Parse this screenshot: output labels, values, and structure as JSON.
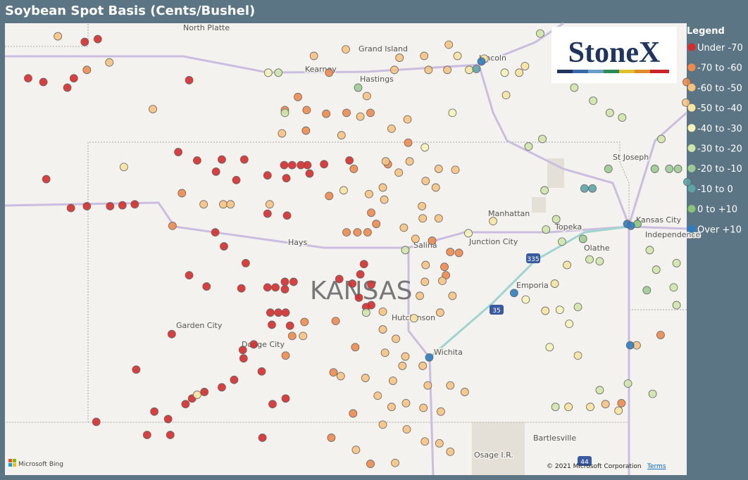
{
  "title": "Soybean Spot Basis (Cents/Bushel)",
  "logo": "StoneX",
  "legend": {
    "title": "Legend",
    "items": [
      {
        "label": "Under -70",
        "color": "#d62b2b"
      },
      {
        "label": "-70 to -60",
        "color": "#f0894c"
      },
      {
        "label": "-60 to -50",
        "color": "#f8c27f"
      },
      {
        "label": "-50 to -40",
        "color": "#fbe3a0"
      },
      {
        "label": "-40 to -30",
        "color": "#f6f3b8"
      },
      {
        "label": "-30 to -20",
        "color": "#cfe6aa"
      },
      {
        "label": "-20 to -10",
        "color": "#9ccc94"
      },
      {
        "label": "-10 to 0",
        "color": "#5ba4a8"
      },
      {
        "label": "0 to +10",
        "color": "#87c47a"
      },
      {
        "label": "Over +10",
        "color": "#2d7cc0"
      }
    ]
  },
  "map": {
    "lon": [
      -103.2,
      -93.8
    ],
    "lat": [
      36.43,
      41.27
    ],
    "labels": [
      "North Platte",
      "Grand Island",
      "Kearney",
      "Hastings",
      "Lincoln",
      "St Joseph",
      "Manhattan",
      "Topeka",
      "Kansas City",
      "Independence",
      "Olathe",
      "Junction City",
      "Salina",
      "Hays",
      "KANSAS",
      "Garden City",
      "Dodge City",
      "Hutchinson",
      "Wichita",
      "Emporia",
      "Bartlesville",
      "Osage I.R."
    ],
    "shields": [
      "335",
      "35",
      "44"
    ],
    "provider": "Microsoft Bing",
    "attribution": "© 2021 Microsoft Corporation",
    "terms": "Terms",
    "points": [
      [
        -102.88,
        40.68,
        0
      ],
      [
        -102.67,
        40.64,
        0
      ],
      [
        -102.34,
        40.58,
        0
      ],
      [
        -102.25,
        40.68,
        0
      ],
      [
        -102.1,
        41.07,
        0
      ],
      [
        -101.92,
        41.1,
        0
      ],
      [
        -100.66,
        40.66,
        0
      ],
      [
        -102.63,
        39.6,
        0
      ],
      [
        -102.29,
        39.29,
        0
      ],
      [
        -102.07,
        39.31,
        0
      ],
      [
        -101.75,
        39.31,
        0
      ],
      [
        -101.58,
        39.32,
        0
      ],
      [
        -101.41,
        39.33,
        0
      ],
      [
        -100.81,
        39.89,
        0
      ],
      [
        -100.55,
        39.8,
        0
      ],
      [
        -100.21,
        39.81,
        0
      ],
      [
        -99.9,
        39.81,
        0
      ],
      [
        -100.29,
        39.68,
        0
      ],
      [
        -100.01,
        39.59,
        0
      ],
      [
        -99.58,
        39.64,
        0
      ],
      [
        -99.35,
        39.75,
        0
      ],
      [
        -99.24,
        39.75,
        0
      ],
      [
        -99.12,
        39.75,
        0
      ],
      [
        -99.03,
        39.75,
        0
      ],
      [
        -98.8,
        39.76,
        0
      ],
      [
        -98.45,
        39.8,
        0
      ],
      [
        -99.32,
        39.61,
        0
      ],
      [
        -99.0,
        39.66,
        0
      ],
      [
        -99.58,
        39.23,
        0
      ],
      [
        -99.31,
        39.21,
        0
      ],
      [
        -100.3,
        39.03,
        0
      ],
      [
        -100.18,
        38.88,
        0
      ],
      [
        -99.88,
        38.7,
        0
      ],
      [
        -100.66,
        38.57,
        0
      ],
      [
        -100.42,
        38.45,
        0
      ],
      [
        -99.94,
        38.43,
        0
      ],
      [
        -99.58,
        38.44,
        0
      ],
      [
        -99.47,
        38.44,
        0
      ],
      [
        -99.34,
        38.5,
        0
      ],
      [
        -99.22,
        38.5,
        0
      ],
      [
        -99.34,
        38.42,
        0
      ],
      [
        -98.59,
        38.53,
        0
      ],
      [
        -98.41,
        38.48,
        0
      ],
      [
        -98.25,
        38.69,
        0
      ],
      [
        -98.3,
        38.58,
        0
      ],
      [
        -98.15,
        38.47,
        0
      ],
      [
        -98.32,
        38.33,
        0
      ],
      [
        -98.22,
        38.23,
        0
      ],
      [
        -98.15,
        38.25,
        0
      ],
      [
        -99.54,
        38.17,
        0
      ],
      [
        -99.43,
        38.17,
        0
      ],
      [
        -99.33,
        38.17,
        0
      ],
      [
        -99.52,
        38.04,
        0
      ],
      [
        -99.27,
        38.03,
        0
      ],
      [
        -100.9,
        37.94,
        0
      ],
      [
        -99.92,
        37.77,
        0
      ],
      [
        -99.77,
        37.83,
        0
      ],
      [
        -99.91,
        37.68,
        0
      ],
      [
        -99.66,
        37.54,
        0
      ],
      [
        -101.39,
        37.56,
        0
      ],
      [
        -100.04,
        37.45,
        0
      ],
      [
        -100.21,
        37.37,
        0
      ],
      [
        -100.45,
        37.32,
        0
      ],
      [
        -100.62,
        37.25,
        0
      ],
      [
        -100.71,
        37.19,
        0
      ],
      [
        -99.51,
        37.19,
        0
      ],
      [
        -99.33,
        37.25,
        0
      ],
      [
        -101.14,
        37.11,
        0
      ],
      [
        -100.95,
        37.03,
        0
      ],
      [
        -101.94,
        37.0,
        0
      ],
      [
        -101.24,
        36.86,
        0
      ],
      [
        -100.92,
        36.86,
        0
      ],
      [
        -99.65,
        36.83,
        0
      ],
      [
        -102.07,
        40.77,
        1
      ],
      [
        -100.76,
        39.45,
        1
      ],
      [
        -100.89,
        39.1,
        1
      ],
      [
        -98.73,
        39.42,
        1
      ],
      [
        -98.77,
        40.3,
        1
      ],
      [
        -98.49,
        40.31,
        1
      ],
      [
        -98.16,
        40.31,
        1
      ],
      [
        -99.04,
        40.34,
        1
      ],
      [
        -99.34,
        40.34,
        1
      ],
      [
        -99.05,
        40.12,
        1
      ],
      [
        -99.16,
        40.48,
        1
      ],
      [
        -98.39,
        39.71,
        1
      ],
      [
        -97.92,
        39.76,
        1
      ],
      [
        -97.64,
        39.99,
        1
      ],
      [
        -98.15,
        39.24,
        1
      ],
      [
        -98.34,
        39.03,
        1
      ],
      [
        -98.49,
        39.03,
        1
      ],
      [
        -98.2,
        39.03,
        1
      ],
      [
        -98.08,
        39.12,
        1
      ],
      [
        -99.07,
        38.07,
        1
      ],
      [
        -99.24,
        37.92,
        1
      ],
      [
        -99.33,
        37.71,
        1
      ],
      [
        -98.64,
        38.08,
        1
      ],
      [
        -98.37,
        37.8,
        1
      ],
      [
        -98.67,
        37.53,
        1
      ],
      [
        -98.7,
        36.83,
        1
      ],
      [
        -98.4,
        37.09,
        1
      ],
      [
        -98.16,
        36.55,
        1
      ],
      [
        -97.31,
        38.94,
        1
      ],
      [
        -97.06,
        38.82,
        1
      ],
      [
        -97.14,
        38.66,
        1
      ],
      [
        -96.94,
        38.81,
        1
      ],
      [
        -97.12,
        38.57,
        1
      ],
      [
        -94.16,
        37.93,
        1
      ],
      [
        -94.7,
        37.2,
        1
      ],
      [
        -93.8,
        40.64,
        1
      ],
      [
        -98.73,
        40.74,
        1
      ],
      [
        -102.47,
        41.13,
        2
      ],
      [
        -101.76,
        40.85,
        2
      ],
      [
        -101.16,
        40.35,
        2
      ],
      [
        -100.46,
        39.33,
        2
      ],
      [
        -100.19,
        39.33,
        2
      ],
      [
        -100.09,
        39.33,
        2
      ],
      [
        -99.55,
        39.33,
        2
      ],
      [
        -98.94,
        40.92,
        2
      ],
      [
        -98.5,
        40.99,
        2
      ],
      [
        -97.83,
        40.77,
        2
      ],
      [
        -97.76,
        40.9,
        2
      ],
      [
        -97.42,
        40.92,
        2
      ],
      [
        -97.08,
        41.04,
        2
      ],
      [
        -97.36,
        40.77,
        2
      ],
      [
        -97.1,
        40.77,
        2
      ],
      [
        -97.65,
        40.24,
        2
      ],
      [
        -97.87,
        40.14,
        2
      ],
      [
        -98.21,
        40.49,
        2
      ],
      [
        -98.56,
        40.07,
        2
      ],
      [
        -99.38,
        40.09,
        2
      ],
      [
        -98.3,
        40.27,
        2
      ],
      [
        -97.95,
        39.79,
        2
      ],
      [
        -97.77,
        39.67,
        2
      ],
      [
        -97.62,
        39.79,
        2
      ],
      [
        -97.4,
        39.58,
        2
      ],
      [
        -97.22,
        39.71,
        2
      ],
      [
        -96.99,
        39.7,
        2
      ],
      [
        -97.26,
        39.51,
        2
      ],
      [
        -97.99,
        39.51,
        2
      ],
      [
        -97.97,
        39.38,
        2
      ],
      [
        -98.18,
        39.44,
        2
      ],
      [
        -97.45,
        39.31,
        2
      ],
      [
        -97.44,
        39.18,
        2
      ],
      [
        -97.22,
        39.18,
        2
      ],
      [
        -97.7,
        39.08,
        2
      ],
      [
        -97.54,
        38.96,
        2
      ],
      [
        -97.4,
        38.68,
        2
      ],
      [
        -97.41,
        38.5,
        2
      ],
      [
        -97.17,
        38.51,
        2
      ],
      [
        -97.03,
        38.35,
        2
      ],
      [
        -97.2,
        38.17,
        2
      ],
      [
        -97.48,
        38.35,
        2
      ],
      [
        -97.99,
        38.18,
        2
      ],
      [
        -97.99,
        37.99,
        2
      ],
      [
        -97.81,
        37.89,
        2
      ],
      [
        -97.96,
        37.74,
        2
      ],
      [
        -97.68,
        37.7,
        2
      ],
      [
        -97.72,
        37.6,
        2
      ],
      [
        -97.44,
        37.6,
        2
      ],
      [
        -97.85,
        37.44,
        2
      ],
      [
        -98.23,
        37.47,
        2
      ],
      [
        -98.06,
        37.28,
        2
      ],
      [
        -97.87,
        37.16,
        2
      ],
      [
        -97.67,
        37.2,
        2
      ],
      [
        -97.43,
        37.15,
        2
      ],
      [
        -97.19,
        37.11,
        2
      ],
      [
        -97.37,
        37.39,
        2
      ],
      [
        -97.06,
        37.39,
        2
      ],
      [
        -96.86,
        37.32,
        2
      ],
      [
        -97.99,
        36.97,
        2
      ],
      [
        -97.66,
        36.92,
        2
      ],
      [
        -97.41,
        36.79,
        2
      ],
      [
        -97.21,
        36.77,
        2
      ],
      [
        -97.06,
        36.68,
        2
      ],
      [
        -97.82,
        36.56,
        2
      ],
      [
        -98.36,
        36.7,
        2
      ],
      [
        -98.57,
        37.49,
        2
      ],
      [
        -99.09,
        37.92,
        2
      ],
      [
        -94.49,
        37.82,
        2
      ],
      [
        -94.92,
        37.19,
        2
      ],
      [
        -93.81,
        40.42,
        2
      ],
      [
        -101.56,
        39.73,
        3
      ],
      [
        -100.55,
        37.29,
        3
      ],
      [
        -96.47,
        39.15,
        3
      ],
      [
        -96.03,
        40.81,
        3
      ],
      [
        -96.29,
        40.5,
        3
      ],
      [
        -96.11,
        40.74,
        3
      ],
      [
        -96.96,
        40.92,
        3
      ],
      [
        -96.59,
        40.89,
        3
      ],
      [
        -96.8,
        40.77,
        3
      ],
      [
        -98.53,
        39.48,
        3
      ],
      [
        -97.56,
        38.11,
        3
      ],
      [
        -95.45,
        38.68,
        3
      ],
      [
        -95.62,
        38.48,
        3
      ],
      [
        -95.75,
        38.19,
        3
      ],
      [
        -95.3,
        37.71,
        3
      ],
      [
        -95.43,
        37.16,
        3
      ],
      [
        -95.13,
        37.16,
        3
      ],
      [
        -94.74,
        37.12,
        3
      ],
      [
        -99.57,
        40.74,
        4
      ],
      [
        -97.03,
        40.31,
        4
      ],
      [
        -96.31,
        40.74,
        4
      ],
      [
        -97.41,
        39.94,
        4
      ],
      [
        -96.81,
        39.02,
        4
      ],
      [
        -96.02,
        38.31,
        4
      ],
      [
        -95.55,
        38.2,
        4
      ],
      [
        -95.42,
        38.05,
        4
      ],
      [
        -95.69,
        37.8,
        4
      ],
      [
        -99.43,
        40.74,
        5
      ],
      [
        -99.34,
        40.31,
        5
      ],
      [
        -95.82,
        41.16,
        5
      ],
      [
        -95.35,
        40.58,
        5
      ],
      [
        -95.09,
        40.44,
        5
      ],
      [
        -94.86,
        40.31,
        5
      ],
      [
        -94.69,
        40.26,
        5
      ],
      [
        -94.15,
        40.03,
        5
      ],
      [
        -95.79,
        40.03,
        5
      ],
      [
        -95.98,
        39.95,
        5
      ],
      [
        -95.76,
        39.48,
        5
      ],
      [
        -95.6,
        39.17,
        5
      ],
      [
        -95.74,
        39.06,
        5
      ],
      [
        -95.52,
        38.93,
        5
      ],
      [
        -95.14,
        38.74,
        5
      ],
      [
        -95.0,
        38.72,
        5
      ],
      [
        -94.31,
        38.84,
        5
      ],
      [
        -93.94,
        38.7,
        5
      ],
      [
        -93.98,
        38.44,
        5
      ],
      [
        -93.94,
        38.25,
        5
      ],
      [
        -94.22,
        38.63,
        5
      ],
      [
        -94.27,
        37.3,
        5
      ],
      [
        -94.61,
        37.41,
        5
      ],
      [
        -95.0,
        37.34,
        5
      ],
      [
        -95.61,
        37.16,
        5
      ],
      [
        -95.3,
        38.23,
        5
      ],
      [
        -97.68,
        38.84,
        5
      ],
      [
        -98.22,
        38.17,
        5
      ],
      [
        -98.33,
        40.58,
        6
      ],
      [
        -94.88,
        39.71,
        6
      ],
      [
        -94.24,
        39.71,
        6
      ],
      [
        -94.04,
        39.71,
        6
      ],
      [
        -93.92,
        39.71,
        6
      ],
      [
        -94.35,
        38.41,
        6
      ],
      [
        -95.23,
        38.96,
        6
      ],
      [
        -96.7,
        40.78,
        7
      ],
      [
        -95.21,
        39.5,
        7
      ],
      [
        -95.1,
        39.5,
        7
      ],
      [
        -93.79,
        39.57,
        7
      ],
      [
        -94.48,
        39.12,
        8
      ],
      [
        -96.63,
        40.86,
        9
      ],
      [
        -94.62,
        39.12,
        9
      ],
      [
        -94.57,
        39.1,
        9
      ],
      [
        -96.18,
        38.38,
        9
      ],
      [
        -97.35,
        37.69,
        9
      ],
      [
        -94.58,
        37.82,
        9
      ]
    ]
  }
}
